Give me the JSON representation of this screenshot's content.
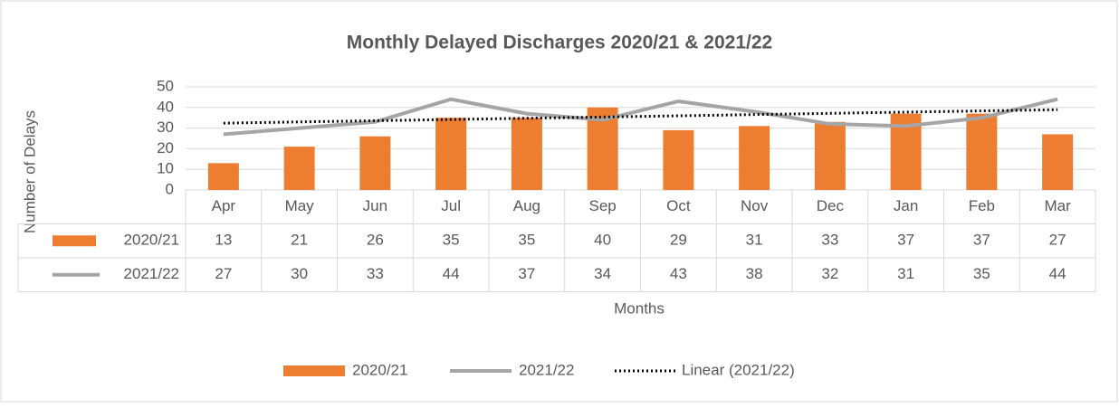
{
  "chart_data": {
    "type": "bar-line",
    "title": "Monthly Delayed Discharges 2020/21  & 2021/22",
    "x_label": "Months",
    "y_label": "Number of Delays",
    "categories": [
      "Apr",
      "May",
      "Jun",
      "Jul",
      "Aug",
      "Sep",
      "Oct",
      "Nov",
      "Dec",
      "Jan",
      "Feb",
      "Mar"
    ],
    "series": [
      {
        "name": "2020/21",
        "type": "bar",
        "color": "#ED7D31",
        "values": [
          13,
          21,
          26,
          35,
          35,
          40,
          29,
          31,
          33,
          37,
          37,
          27
        ]
      },
      {
        "name": "2021/22",
        "type": "line",
        "color": "#A5A5A5",
        "values": [
          27,
          30,
          33,
          44,
          37,
          34,
          43,
          38,
          32,
          31,
          35,
          44
        ]
      }
    ],
    "trendline": {
      "name": "Linear (2021/22)",
      "type": "linear",
      "series": 1,
      "color": "#000000"
    },
    "ylim": [
      0,
      50
    ],
    "yticks": [
      0,
      10,
      20,
      30,
      40,
      50
    ],
    "grid": true,
    "data_table": true,
    "legend": "bottom"
  }
}
